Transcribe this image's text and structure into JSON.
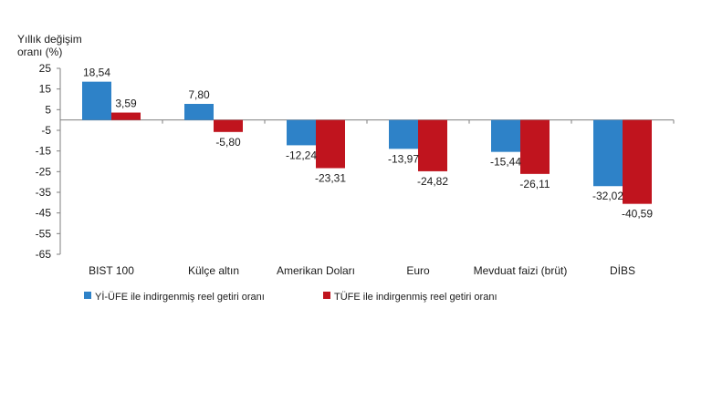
{
  "chart_data": {
    "type": "bar",
    "ylabel_line1": "Yıllık değişim",
    "ylabel_line2": "oranı (%)",
    "ylim": [
      -65,
      25
    ],
    "yticks": [
      25,
      15,
      5,
      -5,
      -15,
      -25,
      -35,
      -45,
      -55,
      -65
    ],
    "ytick_labels": [
      "25",
      "15",
      "5",
      "-5",
      "-15",
      "-25",
      "-35",
      "-45",
      "-55",
      "-65"
    ],
    "grid": false,
    "legend_position": "bottom",
    "categories": [
      "BIST 100",
      "Külçe altın",
      "Amerikan Doları",
      "Euro",
      "Mevduat faizi (brüt)",
      "DİBS"
    ],
    "series": [
      {
        "name": "Yİ-ÜFE ile indirgenmiş reel getiri oranı",
        "color": "#2e82c8",
        "values": [
          18.54,
          7.8,
          -12.24,
          -13.97,
          -15.44,
          -32.02
        ],
        "labels": [
          "18,54",
          "7,80",
          "-12,24",
          "-13,97",
          "-15,44",
          "-32,02"
        ]
      },
      {
        "name": "TÜFE ile indirgenmiş reel getiri oranı",
        "color": "#c0141e",
        "values": [
          3.59,
          -5.8,
          -23.31,
          -24.82,
          -26.11,
          -40.59
        ],
        "labels": [
          "3,59",
          "-5,80",
          "-23,31",
          "-24,82",
          "-26,11",
          "-40,59"
        ]
      }
    ]
  }
}
